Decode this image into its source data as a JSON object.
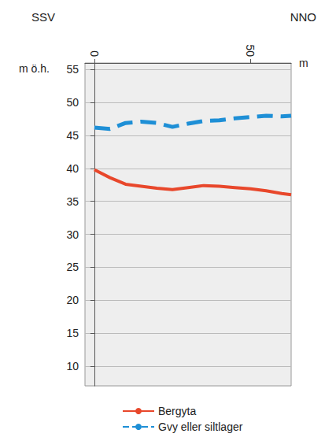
{
  "chart_data": {
    "type": "line",
    "annotations": [
      "SSV",
      "NNO"
    ],
    "x_label": "m",
    "y_label": "m ö.h.",
    "x": [
      0,
      5,
      10,
      15,
      20,
      25,
      30,
      35,
      40,
      45,
      50,
      55,
      60,
      63
    ],
    "xlim": [
      -3,
      63
    ],
    "xticks": [
      0,
      50
    ],
    "ylim": [
      7,
      56
    ],
    "yticks": [
      10,
      15,
      20,
      25,
      30,
      35,
      40,
      45,
      50,
      55
    ],
    "grid": true,
    "legend": "bottom",
    "series": [
      {
        "name": "Bergyta",
        "color": "#e8472b",
        "line_style": "solid",
        "values": [
          39.8,
          38.6,
          37.6,
          37.3,
          37.0,
          36.8,
          37.1,
          37.4,
          37.3,
          37.1,
          36.9,
          36.6,
          36.2,
          36.0
        ]
      },
      {
        "name": "Gvy eller siltlager",
        "color": "#1e8fd6",
        "line_style": "dashed",
        "values": [
          46.2,
          46.0,
          46.9,
          47.1,
          46.9,
          46.3,
          46.8,
          47.2,
          47.3,
          47.6,
          47.8,
          48.0,
          47.9,
          48.0
        ]
      }
    ]
  }
}
